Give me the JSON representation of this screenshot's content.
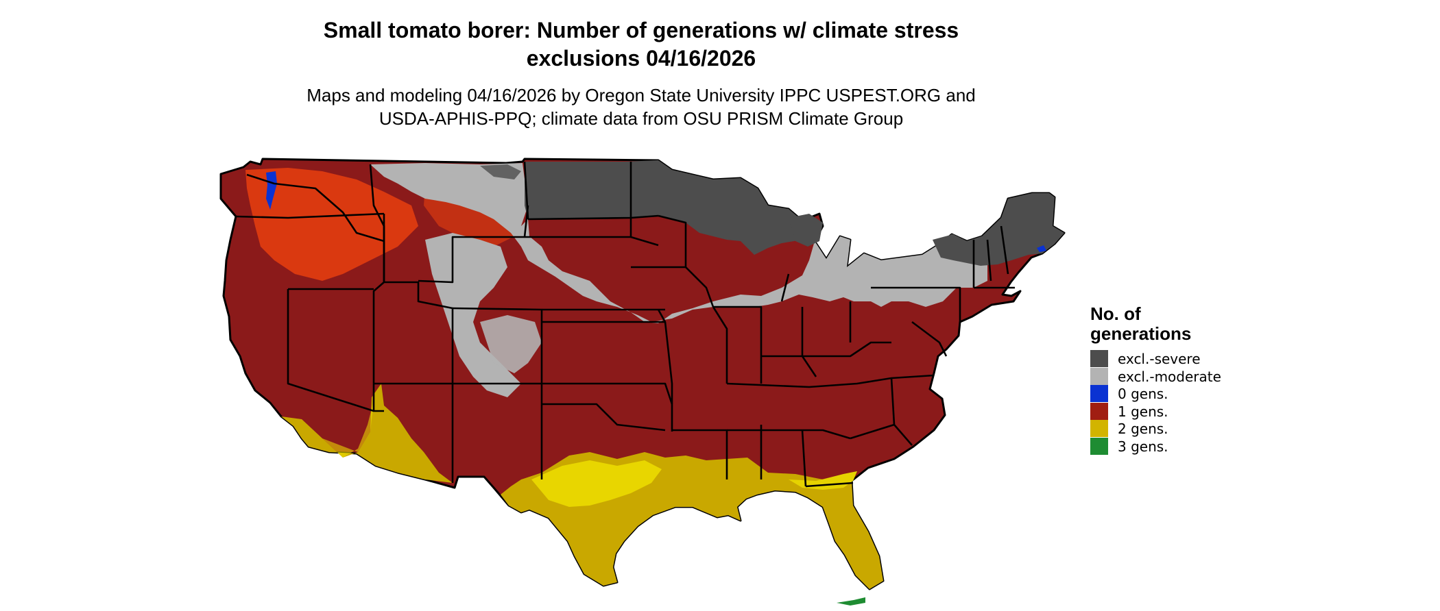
{
  "title_line1": "Small tomato borer: Number of generations w/ climate stress",
  "title_line2": "exclusions 04/16/2026",
  "subtitle_line1": "Maps and modeling 04/16/2026 by Oregon State University IPPC USPEST.ORG and",
  "subtitle_line2": "USDA-APHIS-PPQ; climate data from OSU PRISM Climate Group",
  "legend": {
    "title_line1": "No. of",
    "title_line2": "generations",
    "items": [
      {
        "label": "excl.-severe",
        "color": "#4d4d4d"
      },
      {
        "label": "excl.-moderate",
        "color": "#b3b3b3"
      },
      {
        "label": "0 gens.",
        "color": "#0a32d2"
      },
      {
        "label": "1 gens.",
        "color": "#a01e12"
      },
      {
        "label": "2 gens.",
        "color": "#d2b400"
      },
      {
        "label": "3 gens.",
        "color": "#1e8c32"
      }
    ]
  },
  "colors": {
    "excl_severe": "#4d4d4d",
    "excl_moderate": "#b3b3b3",
    "zero_gens": "#0a32d2",
    "one_gen": "#8b1a1a",
    "one_gen_bright": "#e8400f",
    "two_gens": "#c9a800",
    "two_gens_bright": "#f2e600",
    "three_gens": "#1e8c32"
  }
}
